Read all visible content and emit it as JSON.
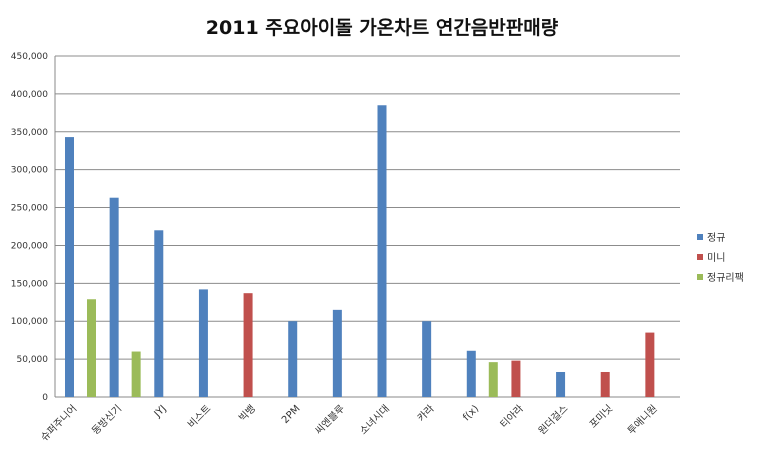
{
  "chart_data": {
    "type": "bar",
    "title": "2011 주요아이돌 가온차트 연간음반판매량",
    "xlabel": "",
    "ylabel": "",
    "ylim": [
      0,
      450000
    ],
    "ytick_step": 50000,
    "yticks": [
      "0",
      "50,000",
      "100,000",
      "150,000",
      "200,000",
      "250,000",
      "300,000",
      "350,000",
      "400,000",
      "450,000"
    ],
    "grid": true,
    "legend_position": "right",
    "categories": [
      "슈퍼주니어",
      "동방신기",
      "JYJ",
      "비스트",
      "빅뱅",
      "2PM",
      "씨엔블루",
      "소녀시대",
      "카라",
      "f(x)",
      "티아라",
      "원더걸스",
      "포미닛",
      "투애니원"
    ],
    "series": [
      {
        "name": "정규",
        "color": "#4f81bd",
        "values": [
          343000,
          263000,
          220000,
          142000,
          null,
          100000,
          115000,
          385000,
          100000,
          61000,
          null,
          33000,
          null,
          null
        ]
      },
      {
        "name": "미니",
        "color": "#c0504d",
        "values": [
          null,
          null,
          null,
          null,
          137000,
          null,
          null,
          null,
          null,
          null,
          48000,
          null,
          33000,
          85000
        ]
      },
      {
        "name": "정규리팩",
        "color": "#9bbb59",
        "values": [
          129000,
          60000,
          null,
          null,
          null,
          null,
          null,
          null,
          null,
          46000,
          null,
          null,
          null,
          null
        ]
      }
    ]
  }
}
